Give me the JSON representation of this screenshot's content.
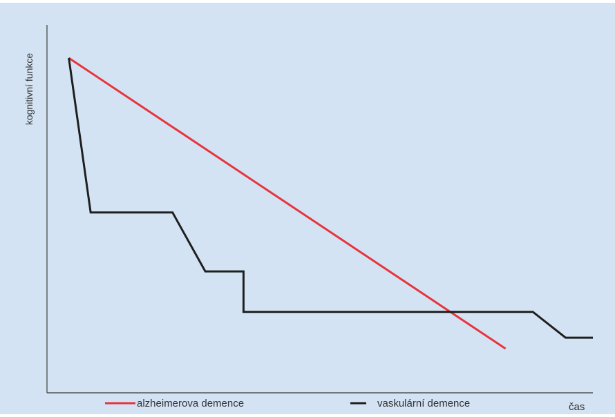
{
  "chart_data": {
    "type": "line",
    "title": "",
    "xlabel": "čas",
    "ylabel": "kognitivní funkce",
    "grid": false,
    "legend_placement": "bottom",
    "xlim": [
      0,
      100
    ],
    "ylim": [
      0,
      100
    ],
    "series": [
      {
        "name": "alzheimerova demence",
        "color": "#e8343c",
        "x": [
          4,
          84
        ],
        "y": [
          91,
          12
        ]
      },
      {
        "name": "vaskulární demence",
        "color": "#1f1f1f",
        "x": [
          4,
          8,
          23,
          29,
          36,
          36,
          89,
          95,
          100
        ],
        "y": [
          91,
          49,
          49,
          33,
          33,
          22,
          22,
          15,
          15
        ]
      }
    ]
  }
}
